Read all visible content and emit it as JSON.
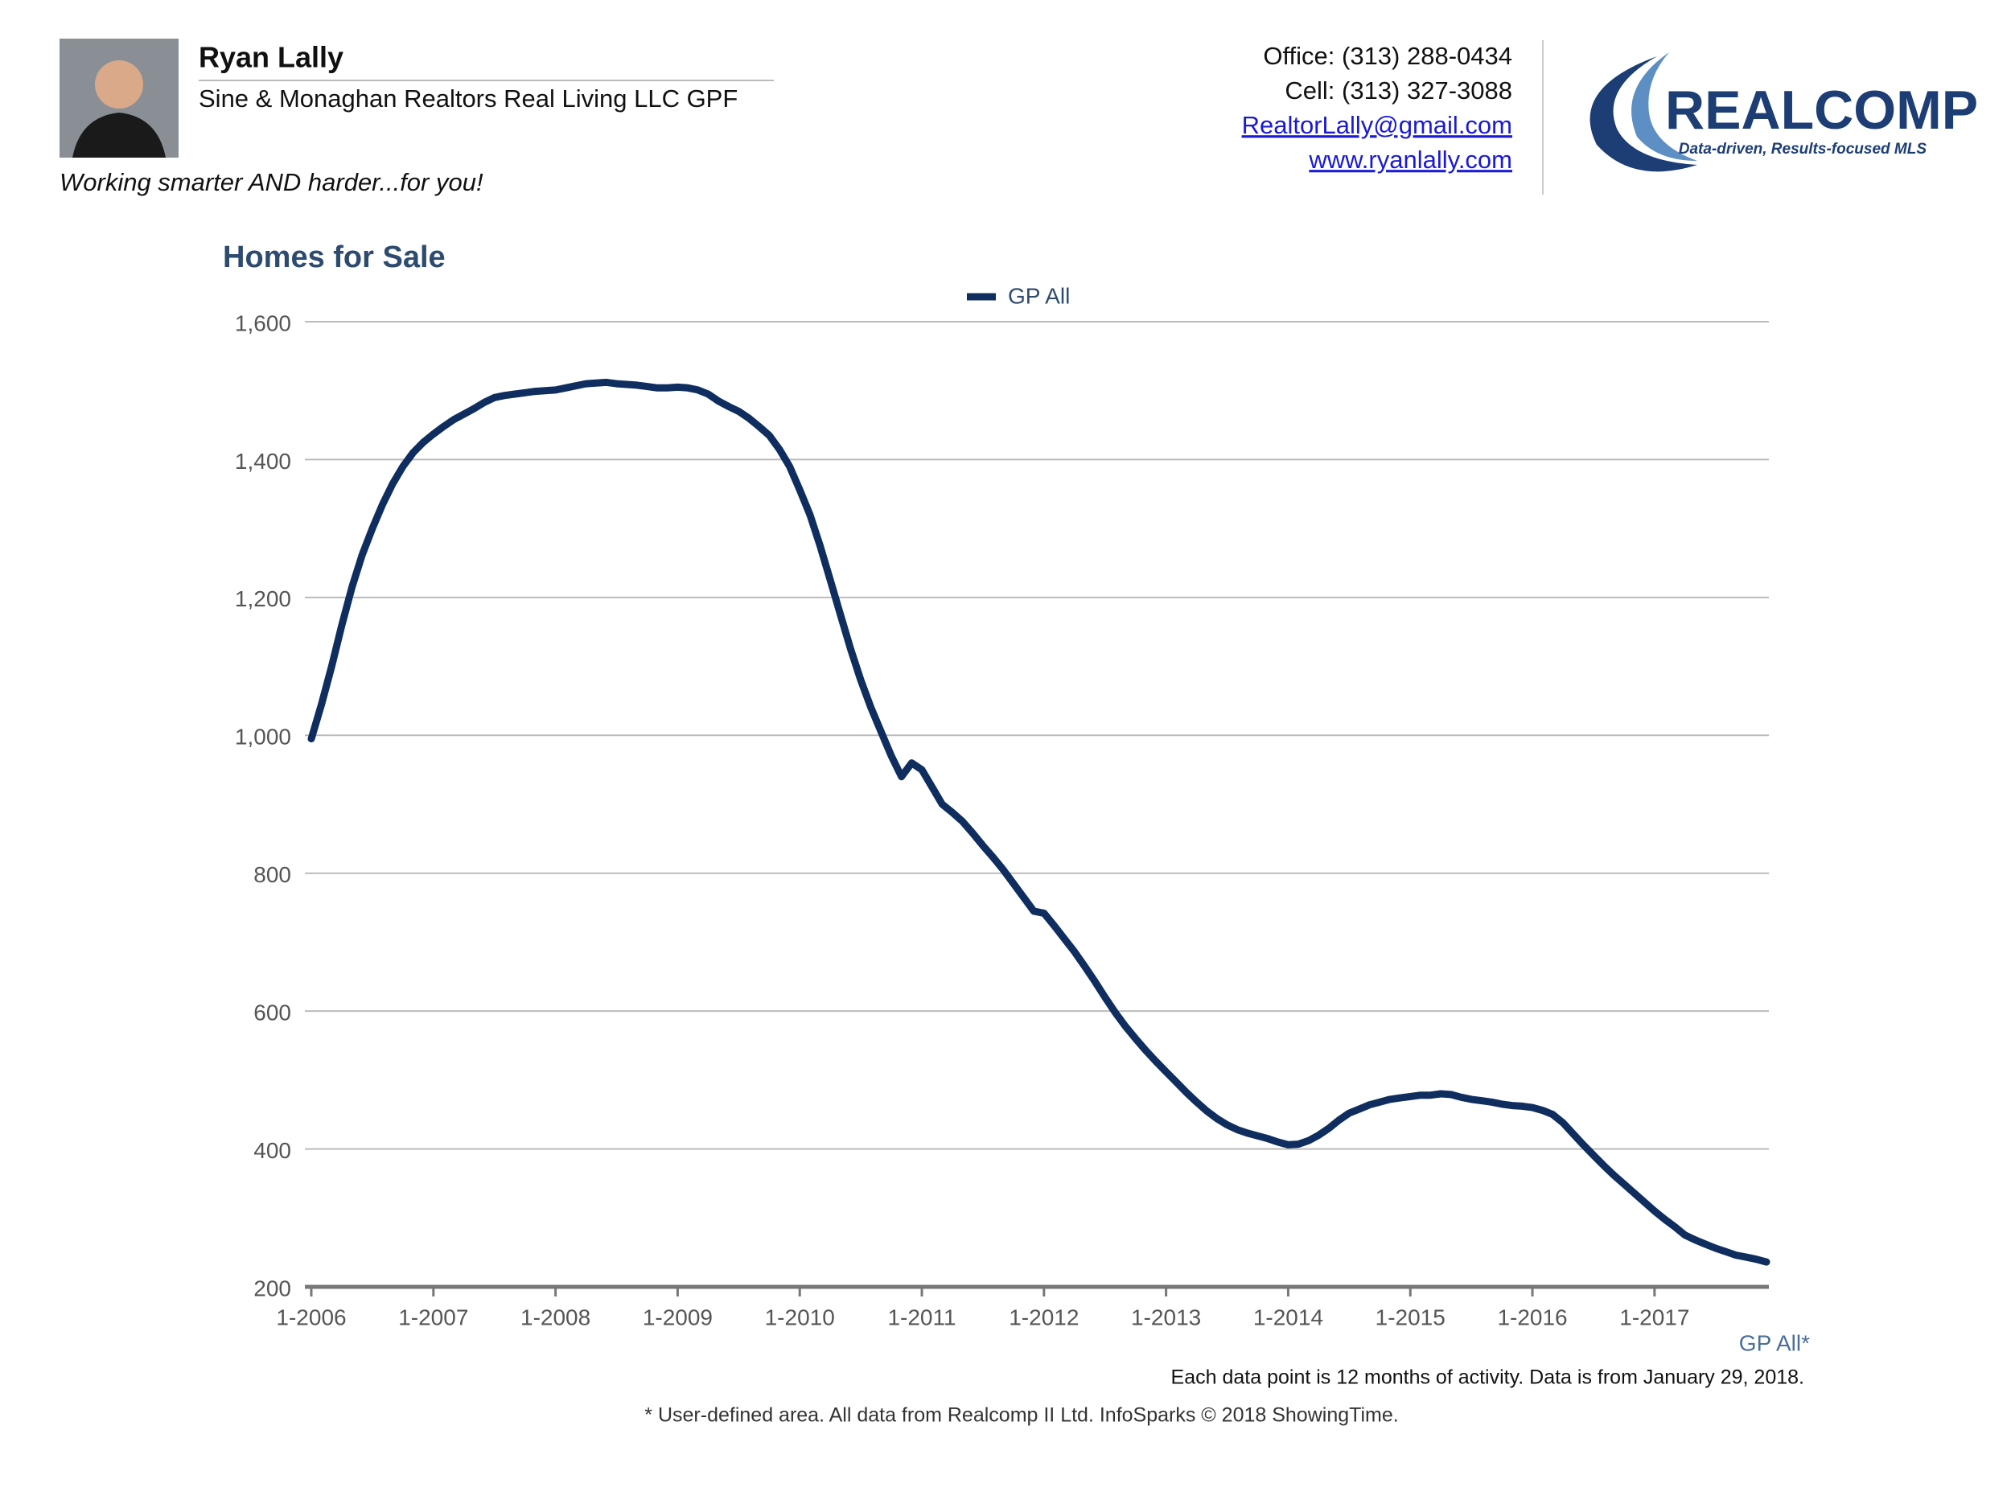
{
  "header": {
    "name": "Ryan Lally",
    "company": "Sine & Monaghan Realtors Real Living LLC GPF",
    "tagline": "Working smarter AND harder...for you!",
    "office": "Office: (313) 288-0434",
    "cell": "Cell: (313) 327-3088",
    "email": "RealtorLally@gmail.com",
    "website": "www.ryanlally.com",
    "logo_name": "REALCOMP",
    "logo_tagline": "Data-driven, Results-focused MLS"
  },
  "chart_data": {
    "type": "line",
    "title": "Homes for Sale",
    "x_label": "GP All*",
    "note": "Each data point is 12 months of activity. Data is from January 29, 2018.",
    "source": "* User-defined area. All data from Realcomp II Ltd. InfoSparks © 2018 ShowingTime.",
    "categories": [
      "1-2006",
      null,
      null,
      null,
      null,
      null,
      null,
      null,
      null,
      null,
      null,
      null,
      "1-2007",
      null,
      null,
      null,
      null,
      null,
      null,
      null,
      null,
      null,
      null,
      null,
      "1-2008",
      null,
      null,
      null,
      null,
      null,
      null,
      null,
      null,
      null,
      null,
      null,
      "1-2009",
      null,
      null,
      null,
      null,
      null,
      null,
      null,
      null,
      null,
      null,
      null,
      "1-2010",
      null,
      null,
      null,
      null,
      null,
      null,
      null,
      null,
      null,
      null,
      null,
      "1-2011",
      null,
      null,
      null,
      null,
      null,
      null,
      null,
      null,
      null,
      null,
      null,
      "1-2012",
      null,
      null,
      null,
      null,
      null,
      null,
      null,
      null,
      null,
      null,
      null,
      "1-2013",
      null,
      null,
      null,
      null,
      null,
      null,
      null,
      null,
      null,
      null,
      null,
      "1-2014",
      null,
      null,
      null,
      null,
      null,
      null,
      null,
      null,
      null,
      null,
      null,
      "1-2015",
      null,
      null,
      null,
      null,
      null,
      null,
      null,
      null,
      null,
      null,
      null,
      "1-2016",
      null,
      null,
      null,
      null,
      null,
      null,
      null,
      null,
      null,
      null,
      null,
      "1-2017",
      null,
      null,
      null,
      null,
      null,
      null,
      null,
      null,
      null,
      null,
      null
    ],
    "series": [
      {
        "name": "GP All",
        "color": "#0f2e5f",
        "values": [
          995,
          1045,
          1100,
          1160,
          1215,
          1262,
          1300,
          1335,
          1365,
          1390,
          1410,
          1425,
          1437,
          1448,
          1458,
          1466,
          1474,
          1483,
          1490,
          1493,
          1495,
          1497,
          1499,
          1500,
          1501,
          1504,
          1507,
          1510,
          1511,
          1512,
          1510,
          1509,
          1508,
          1506,
          1504,
          1504,
          1505,
          1504,
          1501,
          1495,
          1485,
          1477,
          1470,
          1460,
          1448,
          1435,
          1415,
          1390,
          1356,
          1320,
          1275,
          1225,
          1175,
          1125,
          1080,
          1040,
          1005,
          970,
          940,
          960,
          950,
          925,
          900,
          888,
          875,
          858,
          840,
          823,
          805,
          785,
          765,
          745,
          742,
          724,
          705,
          686,
          665,
          643,
          620,
          598,
          578,
          560,
          543,
          527,
          512,
          497,
          482,
          468,
          455,
          444,
          435,
          428,
          423,
          419,
          415,
          410,
          406,
          407,
          412,
          420,
          430,
          442,
          452,
          458,
          464,
          468,
          472,
          474,
          476,
          478,
          478,
          480,
          479,
          475,
          472,
          470,
          468,
          465,
          463,
          462,
          460,
          456,
          450,
          438,
          422,
          406,
          391,
          376,
          362,
          349,
          336,
          323,
          310,
          298,
          287,
          275,
          268,
          262,
          256,
          251,
          246,
          243,
          240,
          236
        ]
      }
    ],
    "ylim": [
      200,
      1600
    ],
    "yticks": [
      200,
      400,
      600,
      800,
      {
        "value": 1000,
        "label": "1,000"
      },
      {
        "value": 1200,
        "label": "1,200"
      },
      {
        "value": 1400,
        "label": "1,400"
      },
      {
        "value": 1600,
        "label": "1,600"
      }
    ],
    "grid": true
  }
}
